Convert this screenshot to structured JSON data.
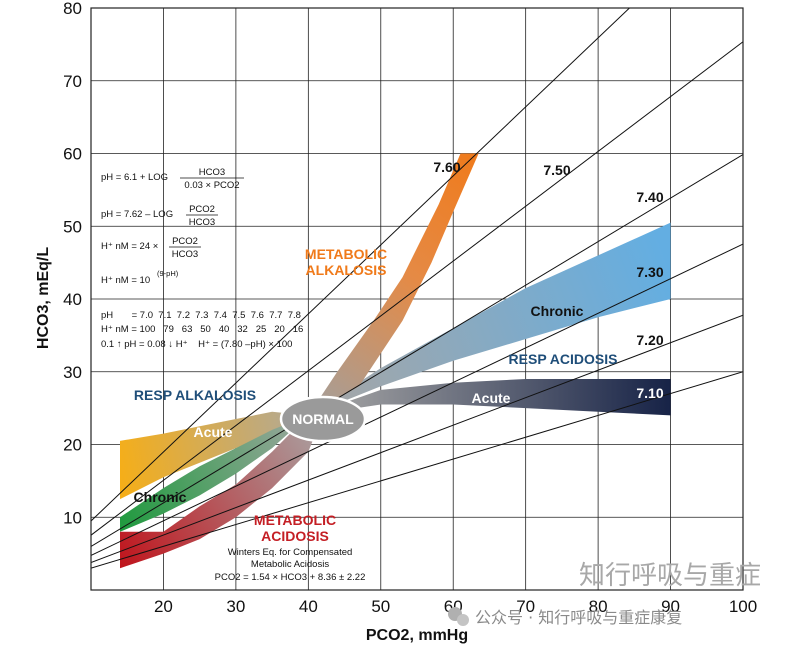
{
  "chart_data": {
    "type": "line",
    "title": "",
    "xlabel": "PCO2, mmHg",
    "ylabel": "HCO3, mEq/L",
    "xlim": [
      10,
      100
    ],
    "ylim": [
      0,
      80
    ],
    "x_ticks": [
      20,
      30,
      40,
      50,
      60,
      70,
      80,
      90,
      100
    ],
    "y_ticks": [
      10,
      20,
      30,
      40,
      50,
      60,
      70,
      80
    ],
    "grid": true,
    "isopleths": [
      {
        "label": "7.60",
        "ph": 7.6
      },
      {
        "label": "7.50",
        "ph": 7.5
      },
      {
        "label": "7.40",
        "ph": 7.4
      },
      {
        "label": "7.30",
        "ph": 7.3
      },
      {
        "label": "7.20",
        "ph": 7.2
      },
      {
        "label": "7.10",
        "ph": 7.1
      }
    ],
    "bands": [
      {
        "name": "METABOLIC ALKALOSIS",
        "color": "#f07a1a",
        "lower": [
          [
            40,
            24
          ],
          [
            47,
            28
          ],
          [
            53,
            37
          ],
          [
            57,
            45
          ],
          [
            60,
            52
          ],
          [
            63.5,
            60
          ]
        ],
        "upper": [
          [
            40,
            24
          ],
          [
            44,
            30
          ],
          [
            49,
            37
          ],
          [
            53,
            43
          ],
          [
            56,
            49
          ],
          [
            58,
            53
          ],
          [
            61,
            60
          ]
        ]
      },
      {
        "name": "RESP ACIDOSIS Chronic",
        "color": "#6aafe0",
        "lower": [
          [
            40,
            24
          ],
          [
            50,
            28
          ],
          [
            60,
            31.5
          ],
          [
            70,
            34.5
          ],
          [
            80,
            37.5
          ],
          [
            90,
            40
          ]
        ],
        "upper": [
          [
            40,
            24
          ],
          [
            50,
            30.5
          ],
          [
            60,
            36
          ],
          [
            70,
            41.5
          ],
          [
            80,
            46
          ],
          [
            90,
            50.5
          ]
        ]
      },
      {
        "name": "RESP ACIDOSIS Acute",
        "color": "#1a2a4e",
        "lower": [
          [
            40,
            24
          ],
          [
            50,
            25.5
          ],
          [
            60,
            25.5
          ],
          [
            70,
            25
          ],
          [
            80,
            24.5
          ],
          [
            90,
            24
          ]
        ],
        "upper": [
          [
            40,
            24
          ],
          [
            50,
            27.5
          ],
          [
            60,
            28.5
          ],
          [
            70,
            29
          ],
          [
            80,
            29
          ],
          [
            90,
            29
          ]
        ]
      },
      {
        "name": "RESP ALKALOSIS Acute",
        "color": "#f4b021",
        "lower": [
          [
            14,
            12.5
          ],
          [
            20,
            15.5
          ],
          [
            25,
            17.5
          ],
          [
            30,
            19.5
          ],
          [
            35,
            21.5
          ],
          [
            40,
            24
          ]
        ],
        "upper": [
          [
            14,
            20.5
          ],
          [
            20,
            21.5
          ],
          [
            25,
            22.5
          ],
          [
            30,
            23.5
          ],
          [
            35,
            24.5
          ],
          [
            40,
            24
          ]
        ]
      },
      {
        "name": "RESP ALKALOSIS Chronic",
        "color": "#2e9d48",
        "lower": [
          [
            14,
            8
          ],
          [
            20,
            10.5
          ],
          [
            25,
            13
          ],
          [
            30,
            16
          ],
          [
            35,
            19.5
          ],
          [
            40,
            24
          ]
        ],
        "upper": [
          [
            14,
            10
          ],
          [
            20,
            14
          ],
          [
            25,
            17
          ],
          [
            30,
            19.5
          ],
          [
            35,
            22
          ],
          [
            40,
            24
          ]
        ]
      },
      {
        "name": "METABOLIC ACIDOSIS",
        "color": "#c41e24",
        "lower": [
          [
            14,
            3
          ],
          [
            20,
            5
          ],
          [
            25,
            7
          ],
          [
            30,
            10
          ],
          [
            35,
            14
          ],
          [
            40,
            19
          ],
          [
            42,
            24
          ]
        ],
        "upper": [
          [
            14,
            8
          ],
          [
            20,
            8
          ],
          [
            25,
            11.5
          ],
          [
            30,
            14.5
          ],
          [
            35,
            19
          ],
          [
            40,
            24
          ]
        ]
      }
    ],
    "labels": {
      "iso": [
        "7.60",
        "7.50",
        "7.40",
        "7.30",
        "7.20",
        "7.10"
      ],
      "normal": "NORMAL",
      "met_alk_1": "METABOLIC",
      "met_alk_2": "ALKALOSIS",
      "met_acid_1": "METABOLIC",
      "met_acid_2": "ACIDOSIS",
      "resp_alk": "RESP ALKALOSIS",
      "resp_acid": "RESP ACIDOSIS",
      "acute": "Acute",
      "chronic": "Chronic"
    },
    "annotations": {
      "eq1_lhs": "pH = 6.1 + LOG",
      "eq1_num": "HCO3",
      "eq1_den": "0.03 × PCO2",
      "eq2_lhs": "pH = 7.62 – LOG",
      "eq2_num": "PCO2",
      "eq2_den": "HCO3",
      "eq3_lhs": "H⁺ nM = 24 ×",
      "eq3_num": "PCO2",
      "eq3_den": "HCO3",
      "eq4": "H⁺ nM = 10",
      "eq4_sup": "(9-pH)",
      "ph_row": "pH       = 7.0  7.1  7.2  7.3  7.4  7.5  7.6  7.7  7.8",
      "h_row": "H⁺ nM = 100   79   63   50   40   32   25   20   16",
      "rule": "0.1 ↑ pH = 0.08 ↓ H⁺    H⁺ = (7.80 –pH) × 100",
      "winters1": "Winters Eq. for Compensated",
      "winters2": "Metabolic Acidosis",
      "winters3": "PCO2 = 1.54 × HCO3 + 8.36 ± 2.22"
    }
  },
  "watermark": {
    "line1": "知行呼吸与重症",
    "line2": "公众号 · 知行呼吸与重症康复"
  }
}
